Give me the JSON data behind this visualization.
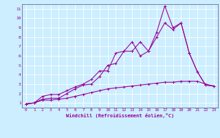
{
  "title": "",
  "xlabel": "Windchill (Refroidissement éolien,°C)",
  "background_color": "#cceeff",
  "grid_color": "#ffffff",
  "line_color": "#990099",
  "spine_color": "#666699",
  "xlim": [
    -0.5,
    23.5
  ],
  "ylim": [
    0.5,
    11.5
  ],
  "xticks": [
    0,
    1,
    2,
    3,
    4,
    5,
    6,
    7,
    8,
    9,
    10,
    11,
    12,
    13,
    14,
    15,
    16,
    17,
    18,
    19,
    20,
    21,
    22,
    23
  ],
  "yticks": [
    1,
    2,
    3,
    4,
    5,
    6,
    7,
    8,
    9,
    10,
    11
  ],
  "line1_x": [
    0,
    1,
    2,
    3,
    4,
    5,
    6,
    7,
    8,
    9,
    10,
    11,
    12,
    13,
    14,
    15,
    16,
    17,
    18,
    19,
    20,
    21,
    22,
    23
  ],
  "line1_y": [
    0.9,
    1.0,
    1.7,
    1.9,
    1.9,
    2.3,
    2.7,
    3.0,
    3.5,
    4.4,
    4.4,
    6.3,
    6.5,
    7.5,
    6.0,
    6.5,
    8.5,
    11.3,
    9.0,
    9.5,
    6.3,
    4.3,
    2.9,
    2.8
  ],
  "line2_x": [
    0,
    1,
    2,
    3,
    4,
    5,
    6,
    7,
    8,
    9,
    10,
    11,
    12,
    13,
    14,
    15,
    16,
    17,
    18,
    19,
    20,
    21,
    22,
    23
  ],
  "line2_y": [
    0.9,
    1.0,
    1.4,
    1.5,
    1.5,
    2.0,
    2.5,
    2.9,
    3.0,
    3.8,
    5.0,
    5.2,
    6.5,
    6.5,
    7.5,
    6.5,
    8.0,
    9.5,
    8.8,
    9.5,
    6.3,
    4.3,
    2.9,
    2.8
  ],
  "line3_x": [
    0,
    1,
    2,
    3,
    4,
    5,
    6,
    7,
    8,
    9,
    10,
    11,
    12,
    13,
    14,
    15,
    16,
    17,
    18,
    19,
    20,
    21,
    22,
    23
  ],
  "line3_y": [
    0.9,
    1.0,
    1.3,
    1.3,
    1.4,
    1.5,
    1.7,
    1.9,
    2.1,
    2.3,
    2.5,
    2.6,
    2.7,
    2.8,
    2.9,
    3.0,
    3.1,
    3.2,
    3.2,
    3.3,
    3.3,
    3.3,
    3.0,
    2.8
  ],
  "tick_fontsize": 4.5,
  "xlabel_fontsize": 5.0,
  "linewidth": 0.8,
  "markersize": 3.0,
  "markeredgewidth": 0.7
}
